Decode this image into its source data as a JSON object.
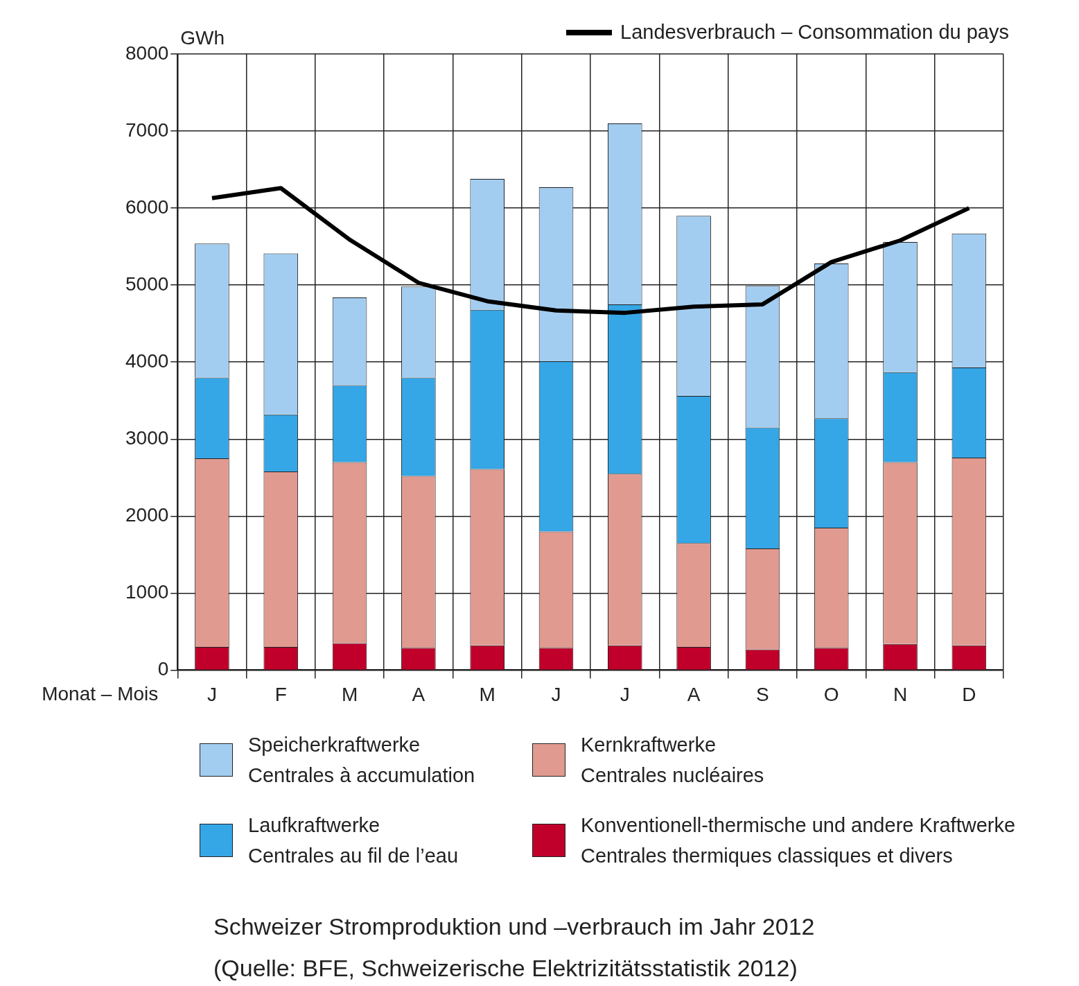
{
  "chart_data": {
    "type": "bar",
    "title": "Schweizer Stromproduktion und –verbrauch im Jahr 2012",
    "xlabel": "Monat – Mois",
    "ylabel": "GWh",
    "annotations": [
      "(Quelle: BFE, Schweizerische Elektrizitätsstatistik 2012)"
    ],
    "categories": [
      "J",
      "F",
      "M",
      "A",
      "M",
      "J",
      "J",
      "A",
      "S",
      "O",
      "N",
      "D"
    ],
    "stacked": true,
    "grid": true,
    "legend": "bottom",
    "ylim": [
      0,
      8000
    ],
    "yticks": [
      0,
      1000,
      2000,
      3000,
      4000,
      5000,
      6000,
      7000,
      8000
    ],
    "series": [
      {
        "name": "Konventionell-thermische und andere Kraftwerke\nCentrales thermiques classiques et divers",
        "color": "#c0002a",
        "values": [
          300,
          300,
          350,
          290,
          320,
          290,
          320,
          300,
          270,
          290,
          340,
          320
        ]
      },
      {
        "name": "Kernkraftwerke\nCentrales nucléaires",
        "color": "#e09a90",
        "values": [
          2450,
          2280,
          2350,
          2230,
          2290,
          1510,
          2230,
          1350,
          1310,
          1560,
          2360,
          2440
        ]
      },
      {
        "name": "Laufkraftwerke\nCentrales au fil de l’eau",
        "color": "#35a6e6",
        "values": [
          1050,
          740,
          1000,
          1280,
          2070,
          2210,
          2200,
          1910,
          1570,
          1420,
          1170,
          1170
        ]
      },
      {
        "name": "Speicherkraftwerke\nCentrales à accumulation",
        "color": "#a3cdf0",
        "values": [
          1740,
          2090,
          1140,
          1180,
          1700,
          2260,
          2350,
          2340,
          1840,
          2010,
          1690,
          1740
        ]
      },
      {
        "name": "Landesverbrauch – Consommation du pays",
        "type": "line",
        "color": "#000000",
        "values": [
          6130,
          6260,
          5590,
          5030,
          4790,
          4670,
          4640,
          4720,
          4750,
          5300,
          5580,
          6000
        ]
      }
    ]
  }
}
